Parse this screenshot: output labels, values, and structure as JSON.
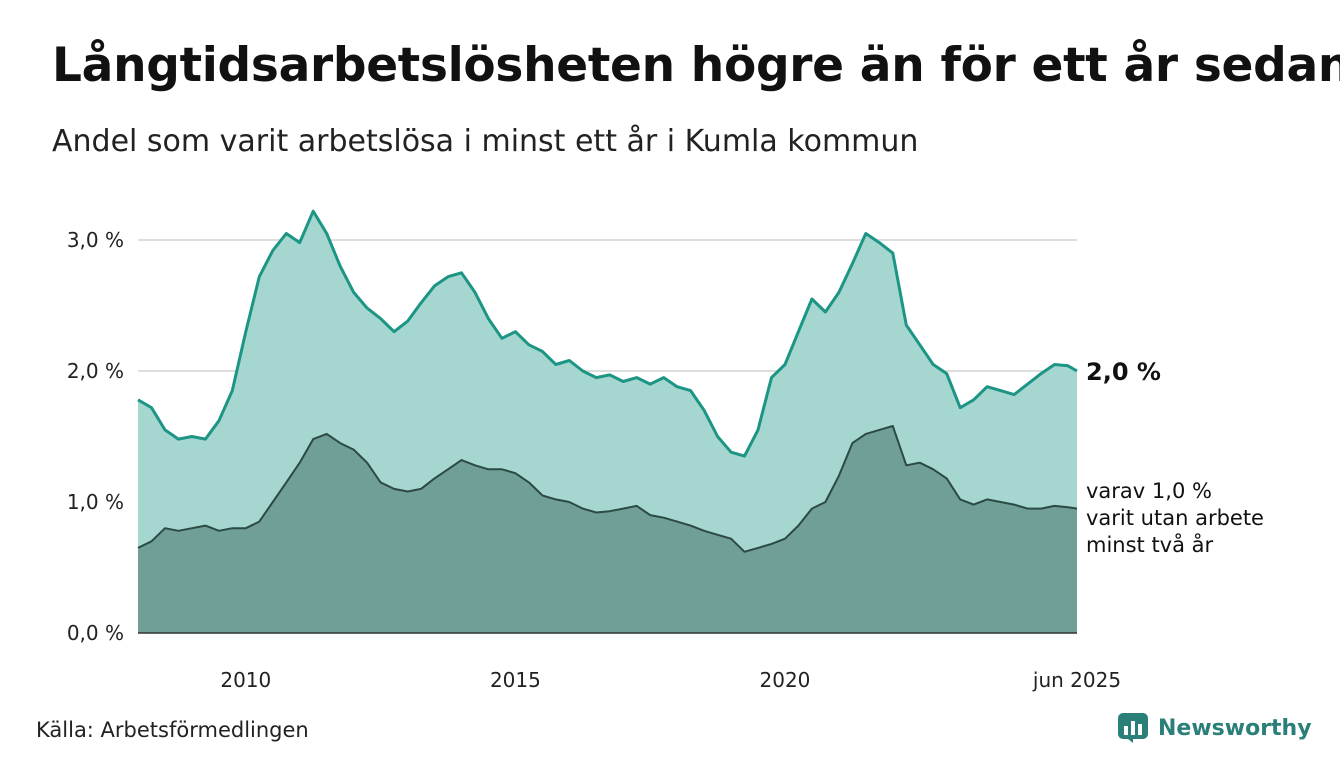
{
  "header": {
    "title": "Långtidsarbetslösheten högre än för ett år sedan",
    "subtitle": "Andel som varit arbetslösa i minst ett år i Kumla kommun"
  },
  "footer": {
    "source": "Källa: Arbetsförmedlingen",
    "brand": "Newsworthy"
  },
  "colors": {
    "total_fill": "#a6d6d0",
    "total_line": "#1c9585",
    "sub_fill": "#6f9f96",
    "sub_line": "#2c4a44",
    "grid": "#dddddd",
    "brand": "#2a7f78"
  },
  "chart_data": {
    "type": "area",
    "title": "Långtidsarbetslösheten högre än för ett år sedan",
    "subtitle": "Andel som varit arbetslösa i minst ett år i Kumla kommun",
    "x_range": [
      "2008-01",
      "2025-06"
    ],
    "ylim": [
      0,
      3.5
    ],
    "y_ticks": [
      {
        "value": 0,
        "label": "0,0 %"
      },
      {
        "value": 1,
        "label": "1,0 %"
      },
      {
        "value": 2,
        "label": "2,0 %"
      },
      {
        "value": 3,
        "label": "3,0 %"
      }
    ],
    "x_ticks": [
      {
        "date": "2010-01",
        "label": "2010"
      },
      {
        "date": "2015-01",
        "label": "2015"
      },
      {
        "date": "2020-01",
        "label": "2020"
      },
      {
        "date": "2025-06",
        "label": "jun 2025"
      }
    ],
    "grid": true,
    "end_label": "2,0 %",
    "note_lines": [
      "varav 1,0 %",
      "varit utan arbete",
      "minst två år"
    ],
    "series": [
      {
        "points": [
          [
            "2008-01",
            1.78
          ],
          [
            "2008-04",
            1.72
          ],
          [
            "2008-07",
            1.55
          ],
          [
            "2008-10",
            1.48
          ],
          [
            "2009-01",
            1.5
          ],
          [
            "2009-04",
            1.48
          ],
          [
            "2009-07",
            1.62
          ],
          [
            "2009-10",
            1.85
          ],
          [
            "2010-01",
            2.3
          ],
          [
            "2010-04",
            2.72
          ],
          [
            "2010-07",
            2.92
          ],
          [
            "2010-10",
            3.05
          ],
          [
            "2011-01",
            2.98
          ],
          [
            "2011-04",
            3.22
          ],
          [
            "2011-07",
            3.05
          ],
          [
            "2011-10",
            2.8
          ],
          [
            "2012-01",
            2.6
          ],
          [
            "2012-04",
            2.48
          ],
          [
            "2012-07",
            2.4
          ],
          [
            "2012-10",
            2.3
          ],
          [
            "2013-01",
            2.38
          ],
          [
            "2013-04",
            2.52
          ],
          [
            "2013-07",
            2.65
          ],
          [
            "2013-10",
            2.72
          ],
          [
            "2014-01",
            2.75
          ],
          [
            "2014-04",
            2.6
          ],
          [
            "2014-07",
            2.4
          ],
          [
            "2014-10",
            2.25
          ],
          [
            "2015-01",
            2.3
          ],
          [
            "2015-04",
            2.2
          ],
          [
            "2015-07",
            2.15
          ],
          [
            "2015-10",
            2.05
          ],
          [
            "2016-01",
            2.08
          ],
          [
            "2016-04",
            2.0
          ],
          [
            "2016-07",
            1.95
          ],
          [
            "2016-10",
            1.97
          ],
          [
            "2017-01",
            1.92
          ],
          [
            "2017-04",
            1.95
          ],
          [
            "2017-07",
            1.9
          ],
          [
            "2017-10",
            1.95
          ],
          [
            "2018-01",
            1.88
          ],
          [
            "2018-04",
            1.85
          ],
          [
            "2018-07",
            1.7
          ],
          [
            "2018-10",
            1.5
          ],
          [
            "2019-01",
            1.38
          ],
          [
            "2019-04",
            1.35
          ],
          [
            "2019-07",
            1.55
          ],
          [
            "2019-10",
            1.95
          ],
          [
            "2020-01",
            2.05
          ],
          [
            "2020-04",
            2.3
          ],
          [
            "2020-07",
            2.55
          ],
          [
            "2020-10",
            2.45
          ],
          [
            "2021-01",
            2.6
          ],
          [
            "2021-04",
            2.82
          ],
          [
            "2021-07",
            3.05
          ],
          [
            "2021-10",
            2.98
          ],
          [
            "2022-01",
            2.9
          ],
          [
            "2022-04",
            2.35
          ],
          [
            "2022-07",
            2.2
          ],
          [
            "2022-10",
            2.05
          ],
          [
            "2023-01",
            1.98
          ],
          [
            "2023-04",
            1.72
          ],
          [
            "2023-07",
            1.78
          ],
          [
            "2023-10",
            1.88
          ],
          [
            "2024-01",
            1.85
          ],
          [
            "2024-04",
            1.82
          ],
          [
            "2024-07",
            1.9
          ],
          [
            "2024-10",
            1.98
          ],
          [
            "2025-01",
            2.05
          ],
          [
            "2025-04",
            2.04
          ],
          [
            "2025-06",
            2.0
          ]
        ]
      },
      {
        "points": [
          [
            "2008-01",
            0.65
          ],
          [
            "2008-04",
            0.7
          ],
          [
            "2008-07",
            0.8
          ],
          [
            "2008-10",
            0.78
          ],
          [
            "2009-01",
            0.8
          ],
          [
            "2009-04",
            0.82
          ],
          [
            "2009-07",
            0.78
          ],
          [
            "2009-10",
            0.8
          ],
          [
            "2010-01",
            0.8
          ],
          [
            "2010-04",
            0.85
          ],
          [
            "2010-07",
            1.0
          ],
          [
            "2010-10",
            1.15
          ],
          [
            "2011-01",
            1.3
          ],
          [
            "2011-04",
            1.48
          ],
          [
            "2011-07",
            1.52
          ],
          [
            "2011-10",
            1.45
          ],
          [
            "2012-01",
            1.4
          ],
          [
            "2012-04",
            1.3
          ],
          [
            "2012-07",
            1.15
          ],
          [
            "2012-10",
            1.1
          ],
          [
            "2013-01",
            1.08
          ],
          [
            "2013-04",
            1.1
          ],
          [
            "2013-07",
            1.18
          ],
          [
            "2013-10",
            1.25
          ],
          [
            "2014-01",
            1.32
          ],
          [
            "2014-04",
            1.28
          ],
          [
            "2014-07",
            1.25
          ],
          [
            "2014-10",
            1.25
          ],
          [
            "2015-01",
            1.22
          ],
          [
            "2015-04",
            1.15
          ],
          [
            "2015-07",
            1.05
          ],
          [
            "2015-10",
            1.02
          ],
          [
            "2016-01",
            1.0
          ],
          [
            "2016-04",
            0.95
          ],
          [
            "2016-07",
            0.92
          ],
          [
            "2016-10",
            0.93
          ],
          [
            "2017-01",
            0.95
          ],
          [
            "2017-04",
            0.97
          ],
          [
            "2017-07",
            0.9
          ],
          [
            "2017-10",
            0.88
          ],
          [
            "2018-01",
            0.85
          ],
          [
            "2018-04",
            0.82
          ],
          [
            "2018-07",
            0.78
          ],
          [
            "2018-10",
            0.75
          ],
          [
            "2019-01",
            0.72
          ],
          [
            "2019-04",
            0.62
          ],
          [
            "2019-07",
            0.65
          ],
          [
            "2019-10",
            0.68
          ],
          [
            "2020-01",
            0.72
          ],
          [
            "2020-04",
            0.82
          ],
          [
            "2020-07",
            0.95
          ],
          [
            "2020-10",
            1.0
          ],
          [
            "2021-01",
            1.2
          ],
          [
            "2021-04",
            1.45
          ],
          [
            "2021-07",
            1.52
          ],
          [
            "2021-10",
            1.55
          ],
          [
            "2022-01",
            1.58
          ],
          [
            "2022-04",
            1.28
          ],
          [
            "2022-07",
            1.3
          ],
          [
            "2022-10",
            1.25
          ],
          [
            "2023-01",
            1.18
          ],
          [
            "2023-04",
            1.02
          ],
          [
            "2023-07",
            0.98
          ],
          [
            "2023-10",
            1.02
          ],
          [
            "2024-01",
            1.0
          ],
          [
            "2024-04",
            0.98
          ],
          [
            "2024-07",
            0.95
          ],
          [
            "2024-10",
            0.95
          ],
          [
            "2025-01",
            0.97
          ],
          [
            "2025-04",
            0.96
          ],
          [
            "2025-06",
            0.95
          ]
        ]
      }
    ]
  }
}
